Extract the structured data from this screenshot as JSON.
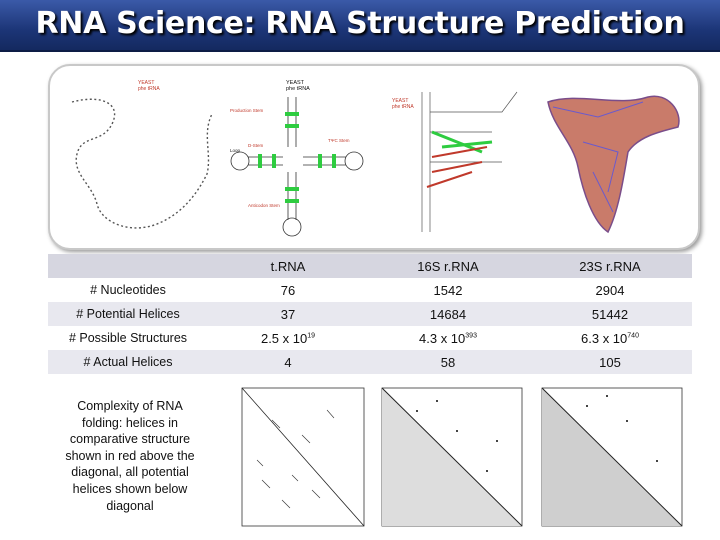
{
  "title": "RNA Science: RNA Structure Prediction",
  "figure": {
    "panel1": {
      "label_line1": "YEAST",
      "label_line2": "phe tRNA"
    },
    "panel2": {
      "label_line1": "YEAST",
      "label_line2": "phe tRNA",
      "tags": [
        "Production Stem",
        "D-Stem",
        "Anticodon Stem",
        "TΨC Stem",
        "Loop"
      ]
    },
    "panel3": {
      "label_line1": "YEAST",
      "label_line2": "phe tRNA"
    }
  },
  "table": {
    "headers": [
      "",
      "t.RNA",
      "16S r.RNA",
      "23S r.RNA"
    ],
    "rows": [
      {
        "label": "# Nucleotides",
        "trna": "76",
        "r16s": "1542",
        "r23s": "2904"
      },
      {
        "label": "# Potential Helices",
        "trna": "37",
        "r16s": "14684",
        "r23s": "51442"
      },
      {
        "label": "# Possible Structures",
        "trna": "2.5 x 10",
        "trna_exp": "19",
        "r16s": "4.3 x 10",
        "r16s_exp": "393",
        "r23s": "6.3 x 10",
        "r23s_exp": "740"
      },
      {
        "label": "# Actual Helices",
        "trna": "4",
        "r16s": "58",
        "r23s": "105"
      }
    ]
  },
  "caption": "Complexity of RNA folding: helices in comparative structure shown in red above the diagonal, all potential helices shown below diagonal"
}
